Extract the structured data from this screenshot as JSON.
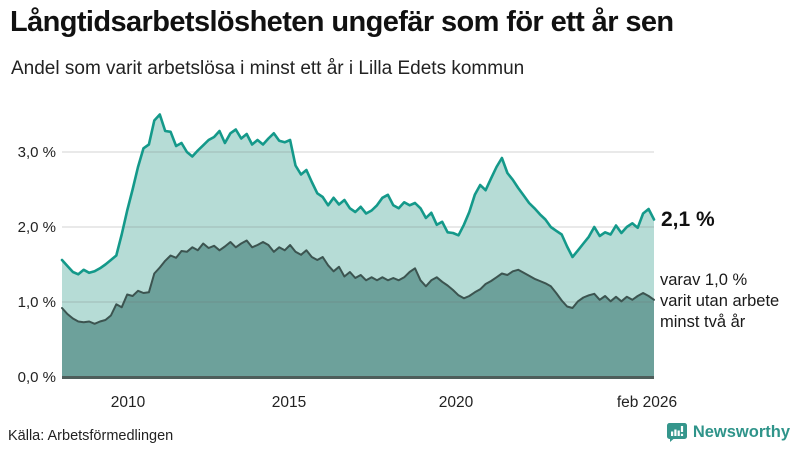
{
  "header": {
    "title": "Långtidsarbetslösheten ungefär som för ett år sen",
    "subtitle": "Andel som varit arbetslösa i minst ett år i Lilla Edets kommun"
  },
  "chart_data": {
    "type": "area",
    "title": "Långtidsarbetslösheten ungefär som för ett år sen",
    "subtitle": "Andel som varit arbetslösa i minst ett år i Lilla Edets kommun",
    "x_start": 2008.0,
    "x_end": 2026.083,
    "x_tick_labels": [
      "2010",
      "2015",
      "2020",
      "feb 2026"
    ],
    "y_tick_labels": [
      "0,0 %",
      "1,0 %",
      "2,0 %",
      "3,0 %"
    ],
    "ylim": [
      0,
      3.73
    ],
    "grid": "horizontal-only",
    "legend_position": "right-annotations",
    "colors": {
      "grid": "#d9d9d9",
      "baseline": "#4e5e5b",
      "text": "#222222"
    },
    "series": [
      {
        "name": "Andel som varit arbetslösa i minst ett år",
        "line_color": "#14998a",
        "fill_color": "#b6dcd6",
        "line_width": 2.6,
        "values": [
          1.56,
          1.48,
          1.4,
          1.37,
          1.43,
          1.39,
          1.41,
          1.45,
          1.5,
          1.56,
          1.62,
          1.9,
          2.22,
          2.5,
          2.8,
          3.05,
          3.1,
          3.42,
          3.5,
          3.28,
          3.27,
          3.08,
          3.12,
          3.0,
          2.94,
          3.02,
          3.09,
          3.16,
          3.2,
          3.28,
          3.12,
          3.25,
          3.3,
          3.18,
          3.24,
          3.1,
          3.16,
          3.1,
          3.18,
          3.25,
          3.15,
          3.13,
          3.16,
          2.82,
          2.7,
          2.76,
          2.6,
          2.45,
          2.4,
          2.29,
          2.39,
          2.3,
          2.36,
          2.25,
          2.2,
          2.27,
          2.18,
          2.22,
          2.29,
          2.39,
          2.43,
          2.29,
          2.25,
          2.33,
          2.29,
          2.32,
          2.25,
          2.12,
          2.19,
          2.03,
          2.07,
          1.93,
          1.92,
          1.89,
          2.03,
          2.2,
          2.43,
          2.56,
          2.49,
          2.65,
          2.8,
          2.92,
          2.72,
          2.63,
          2.52,
          2.42,
          2.32,
          2.25,
          2.17,
          2.1,
          2.0,
          1.95,
          1.9,
          1.74,
          1.6,
          1.69,
          1.78,
          1.87,
          2.0,
          1.88,
          1.93,
          1.9,
          2.02,
          1.92,
          2.0,
          2.05,
          1.99,
          2.18,
          2.24,
          2.1
        ]
      },
      {
        "name": "varav utan arbete minst två år",
        "line_color": "#3c5450",
        "fill_color": "#6da19b",
        "line_width": 2,
        "values": [
          0.92,
          0.84,
          0.78,
          0.74,
          0.73,
          0.74,
          0.71,
          0.74,
          0.76,
          0.82,
          0.97,
          0.93,
          1.1,
          1.08,
          1.15,
          1.12,
          1.13,
          1.38,
          1.46,
          1.55,
          1.62,
          1.59,
          1.68,
          1.67,
          1.73,
          1.69,
          1.78,
          1.72,
          1.75,
          1.69,
          1.74,
          1.8,
          1.73,
          1.78,
          1.82,
          1.73,
          1.76,
          1.8,
          1.76,
          1.67,
          1.73,
          1.69,
          1.76,
          1.67,
          1.63,
          1.69,
          1.6,
          1.56,
          1.6,
          1.49,
          1.41,
          1.47,
          1.34,
          1.4,
          1.32,
          1.36,
          1.29,
          1.33,
          1.29,
          1.33,
          1.29,
          1.32,
          1.29,
          1.33,
          1.4,
          1.45,
          1.29,
          1.21,
          1.29,
          1.33,
          1.27,
          1.22,
          1.16,
          1.09,
          1.05,
          1.08,
          1.13,
          1.17,
          1.24,
          1.28,
          1.33,
          1.38,
          1.36,
          1.41,
          1.43,
          1.39,
          1.35,
          1.31,
          1.28,
          1.25,
          1.21,
          1.12,
          1.02,
          0.94,
          0.92,
          1.01,
          1.06,
          1.09,
          1.11,
          1.03,
          1.08,
          1.01,
          1.07,
          1.01,
          1.07,
          1.03,
          1.08,
          1.12,
          1.08,
          1.03
        ]
      }
    ],
    "annotations": {
      "latest_total": "2,1 %",
      "sub_lines": [
        "varav 1,0 %",
        "varit utan arbete",
        "minst två år"
      ]
    }
  },
  "footer": {
    "source": "Källa: Arbetsförmedlingen",
    "brand": "Newsworthy",
    "brand_color": "#2f948a"
  }
}
